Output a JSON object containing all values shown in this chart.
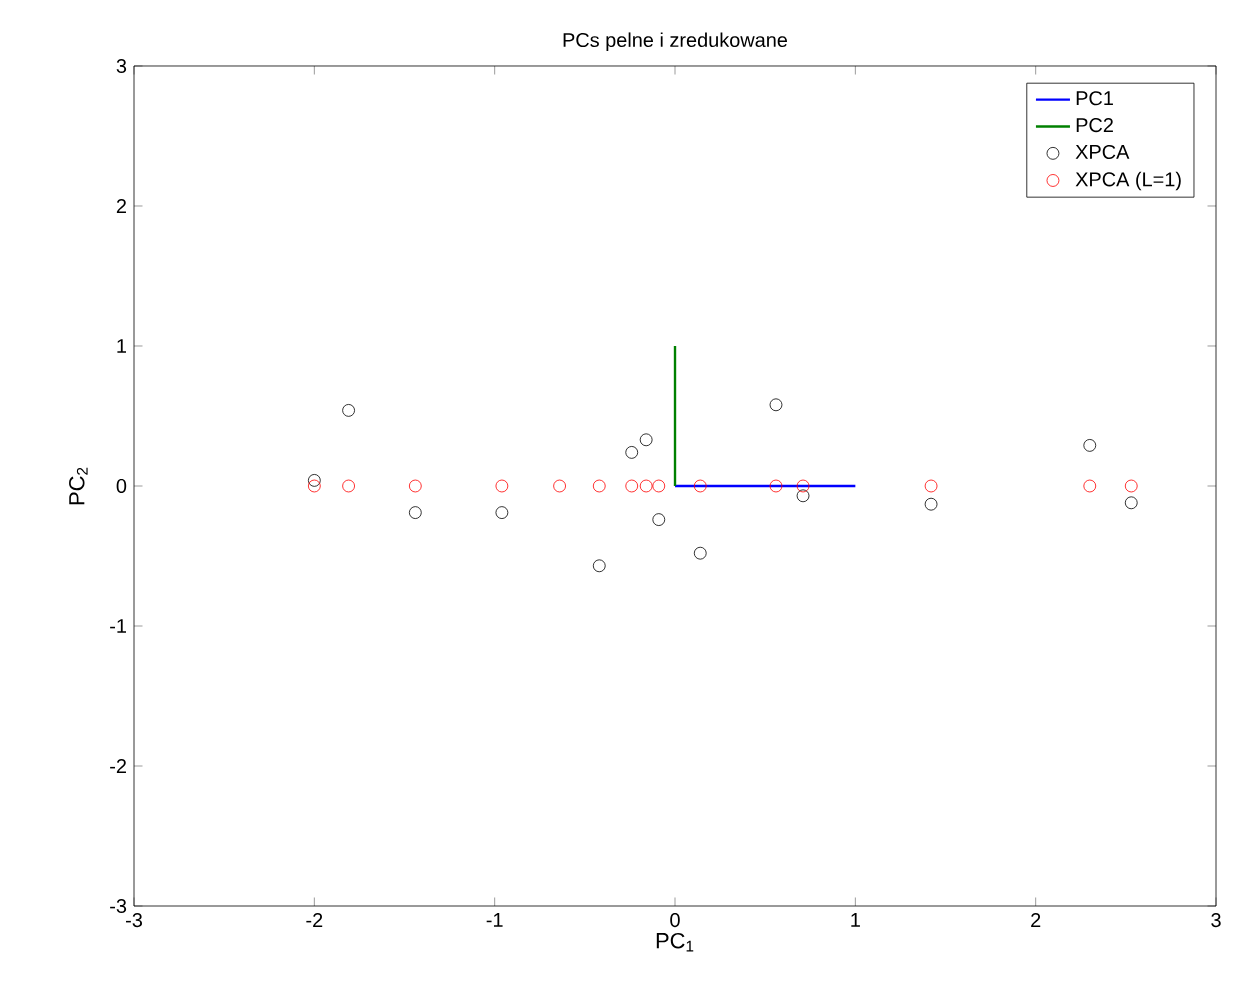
{
  "chart_data": {
    "type": "scatter",
    "title": "PCs pelne i zredukowane",
    "xlabel": "PC$_{1}$",
    "ylabel": "PC$_{2}$",
    "xlim": [
      -3,
      3
    ],
    "ylim": [
      -3,
      3
    ],
    "xticks": [
      -3,
      -2,
      -1,
      0,
      1,
      2,
      3
    ],
    "yticks": [
      -3,
      -2,
      -1,
      0,
      1,
      2,
      3
    ],
    "grid": false,
    "legend": "top right",
    "series": [
      {
        "name": "PC1",
        "type": "line",
        "marker": "none",
        "color": "#0000ff",
        "x": [
          0,
          1
        ],
        "values": [
          0,
          0
        ]
      },
      {
        "name": "PC2",
        "type": "line",
        "marker": "none",
        "color": "#008000",
        "x": [
          0,
          0
        ],
        "values": [
          0,
          1
        ]
      },
      {
        "name": "XPCA",
        "marker": "circle",
        "color": "#000000",
        "x": [
          -2.0,
          -1.81,
          -1.44,
          -0.96,
          -0.42,
          -0.24,
          -0.16,
          -0.09,
          0.14,
          0.56,
          0.71,
          1.42,
          2.3,
          2.53
        ],
        "values": [
          0.04,
          0.54,
          -0.19,
          -0.19,
          -0.57,
          0.24,
          0.33,
          -0.24,
          -0.48,
          0.58,
          -0.07,
          -0.13,
          0.29,
          -0.12
        ]
      },
      {
        "name": "XPCA (L=1)",
        "marker": "circle",
        "color": "#ff0000",
        "x": [
          -2.0,
          -1.81,
          -1.44,
          -0.96,
          -0.64,
          -0.42,
          -0.24,
          -0.16,
          -0.09,
          0.14,
          0.56,
          0.71,
          1.42,
          2.3,
          2.53
        ],
        "values": [
          0,
          0,
          0,
          0,
          0,
          0,
          0,
          0,
          0,
          0,
          0,
          0,
          0,
          0,
          0
        ]
      }
    ]
  }
}
